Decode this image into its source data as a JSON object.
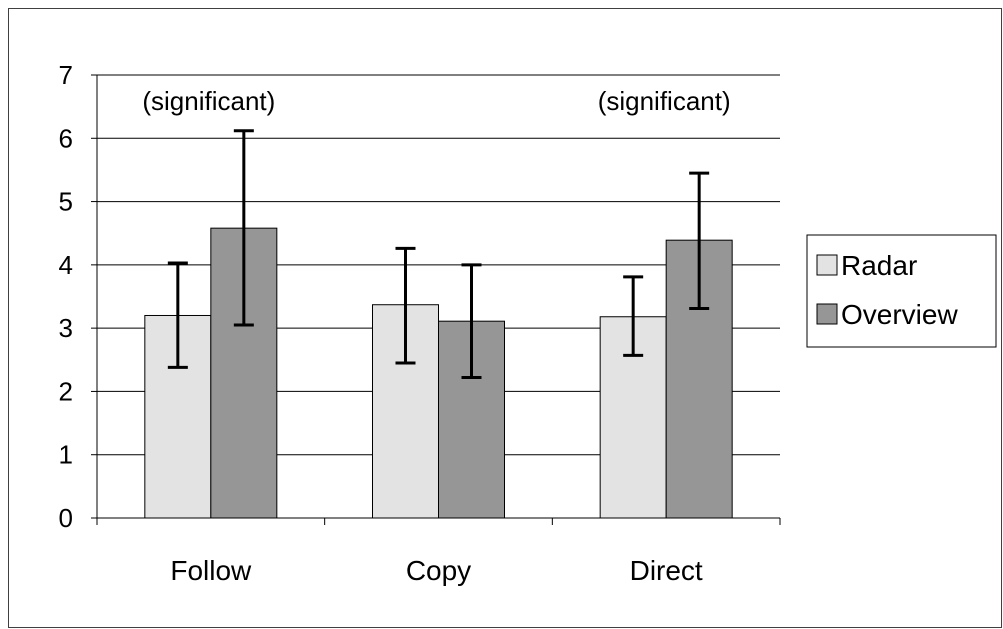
{
  "chart_data": {
    "type": "bar",
    "categories": [
      "Follow",
      "Copy",
      "Direct"
    ],
    "series": [
      {
        "name": "Radar",
        "color": "#e3e3e3",
        "values": [
          3.2,
          3.37,
          3.18
        ],
        "error_low": [
          2.38,
          2.45,
          2.57
        ],
        "error_high": [
          4.03,
          4.26,
          3.81
        ]
      },
      {
        "name": "Overview",
        "color": "#969696",
        "values": [
          4.58,
          3.11,
          4.39
        ],
        "error_low": [
          3.05,
          2.22,
          3.31
        ],
        "error_high": [
          6.12,
          4.0,
          5.45
        ]
      }
    ],
    "ylim": [
      0,
      7
    ],
    "yticks": [
      "0",
      "1",
      "2",
      "3",
      "4",
      "5",
      "6",
      "7"
    ],
    "grid": true,
    "legend_position": "right",
    "annotations": [
      {
        "category": "Follow",
        "text": "(significant)"
      },
      {
        "category": "Direct",
        "text": "(significant)"
      }
    ],
    "title": "",
    "xlabel": "",
    "ylabel": ""
  }
}
